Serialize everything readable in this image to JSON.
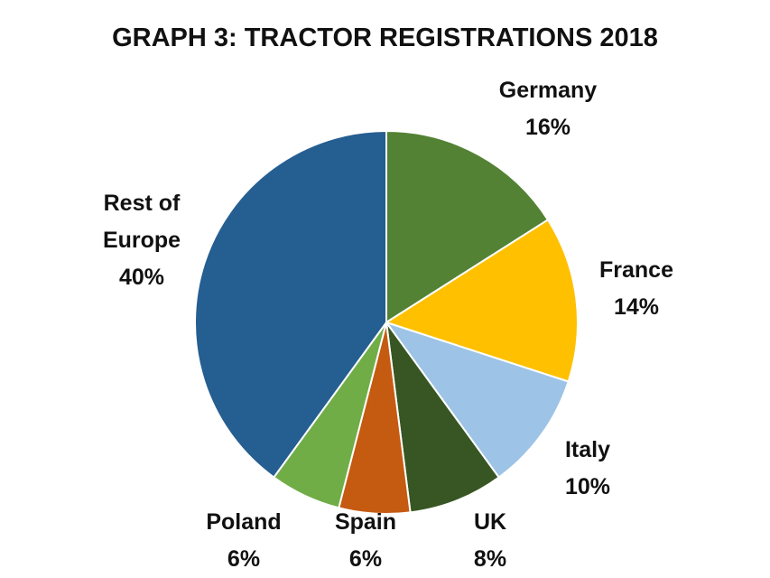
{
  "chart_data": {
    "type": "pie",
    "title": "GRAPH 3: TRACTOR REGISTRATIONS 2018",
    "categories": [
      "Germany",
      "France",
      "Italy",
      "UK",
      "Spain",
      "Poland",
      "Rest of Europe"
    ],
    "values": [
      16,
      14,
      10,
      8,
      6,
      6,
      40
    ],
    "value_labels": [
      "16%",
      "14%",
      "10%",
      "8%",
      "6%",
      "6%",
      "40%"
    ],
    "colors": [
      "#548235",
      "#ffc000",
      "#9dc3e6",
      "#375623",
      "#c55a11",
      "#70ad47",
      "#255e91"
    ]
  }
}
